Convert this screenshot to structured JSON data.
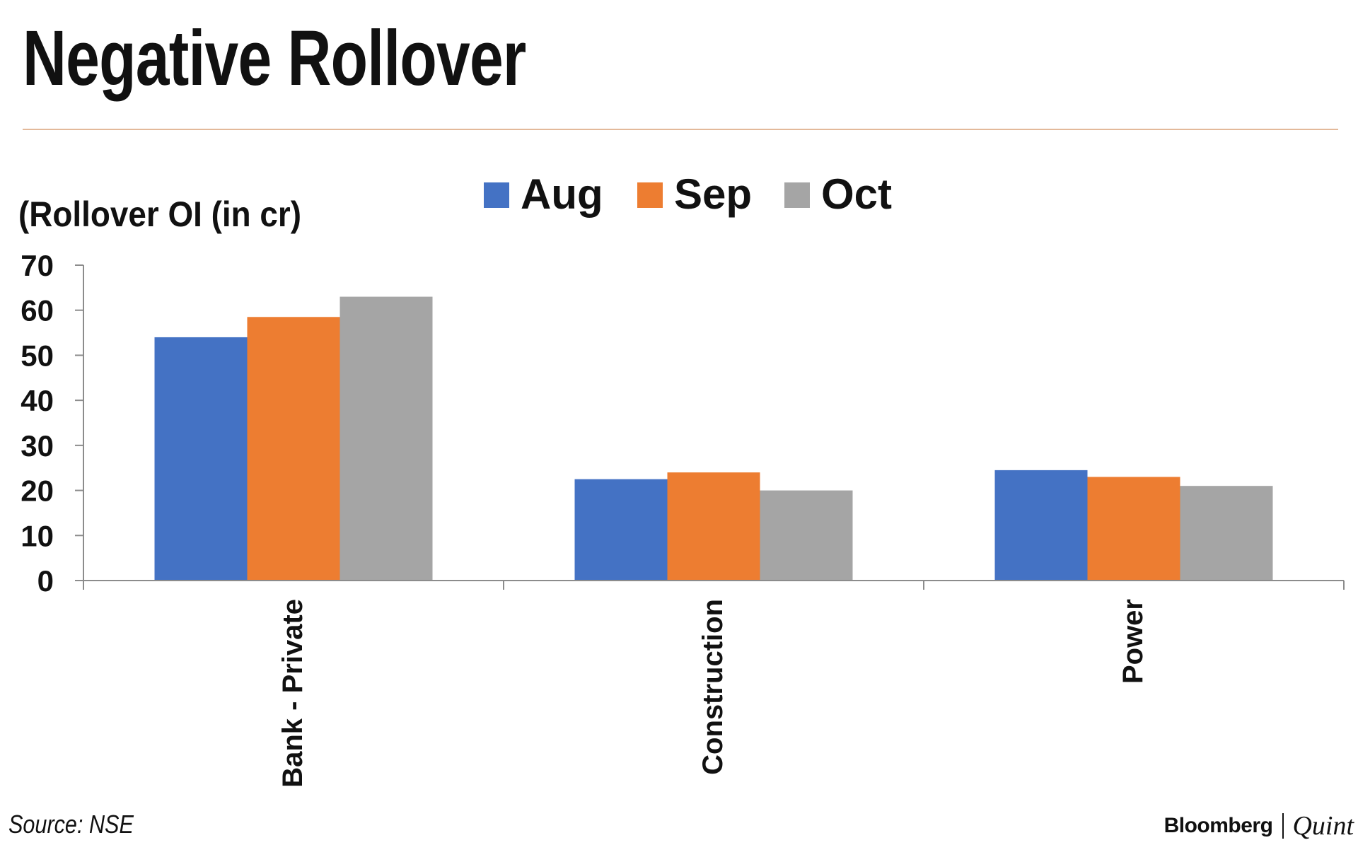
{
  "chart_data": {
    "type": "bar",
    "title": "Negative Rollover",
    "ylabel": "(Rollover OI (in cr)",
    "xlabel": "",
    "categories": [
      "Bank - Private",
      "Construction",
      "Power"
    ],
    "series": [
      {
        "name": "Aug",
        "color": "#4472c4",
        "values": [
          54,
          22.5,
          24.5
        ]
      },
      {
        "name": "Sep",
        "color": "#ed7d31",
        "values": [
          58.5,
          24,
          23
        ]
      },
      {
        "name": "Oct",
        "color": "#a5a5a5",
        "values": [
          63,
          20,
          21
        ]
      }
    ],
    "ylim": [
      0,
      70
    ],
    "yticks": [
      "0",
      "10",
      "20",
      "30",
      "40",
      "50",
      "60",
      "70"
    ],
    "grid": false,
    "legend_position": "top-center"
  },
  "footer": {
    "source": "Source: NSE",
    "brand_primary": "Bloomberg",
    "brand_secondary": "Quint"
  }
}
